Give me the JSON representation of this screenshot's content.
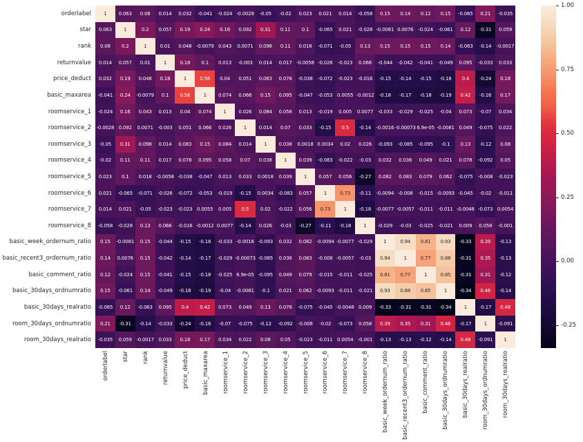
{
  "chart_data": {
    "type": "heatmap",
    "title": "",
    "xlabel": "",
    "ylabel": "",
    "grid": false,
    "colormap": "rocket",
    "vmin": -0.34,
    "vmax": 1.0,
    "legend_position": "right-colorbar",
    "colorbar_ticks": [
      {
        "label": "1.00",
        "value": 1.0
      },
      {
        "label": "0.75",
        "value": 0.75
      },
      {
        "label": "0.50",
        "value": 0.5
      },
      {
        "label": "0.25",
        "value": 0.25
      },
      {
        "label": "0.00",
        "value": 0.0
      },
      {
        "label": "-0.25",
        "value": -0.25
      }
    ],
    "categories": [
      "orderlabel",
      "star",
      "rank",
      "returnvalue",
      "price_deduct",
      "basic_maxarea",
      "roomservice_1",
      "roomservice_2",
      "roomservice_3",
      "roomservice_4",
      "roomservice_5",
      "roomservice_6",
      "roomservice_7",
      "roomservice_8",
      "basic_week_ordernum_ratio",
      "basic_recent3_ordernum_ratio",
      "basic_comment_ratio",
      "basic_30days_ordnumratio",
      "basic_30days_realratio",
      "room_30days_ordnumratio",
      "room_30days_realratio"
    ],
    "matrix": [
      [
        1,
        0.063,
        0.08,
        0.014,
        0.032,
        -0.041,
        -0.024,
        -0.0028,
        -0.05,
        -0.02,
        0.023,
        0.021,
        0.014,
        -0.058,
        0.15,
        0.14,
        0.12,
        0.15,
        -0.065,
        0.21,
        -0.035
      ],
      [
        0.063,
        1,
        0.2,
        0.057,
        0.19,
        0.24,
        0.16,
        0.092,
        0.31,
        0.11,
        0.1,
        -0.065,
        0.021,
        -0.028,
        -0.0081,
        0.0076,
        -0.024,
        -0.061,
        0.12,
        -0.31,
        0.059
      ],
      [
        0.08,
        0.2,
        1,
        0.01,
        0.048,
        -0.0079,
        0.043,
        0.0071,
        0.098,
        0.11,
        0.018,
        -0.071,
        -0.05,
        0.13,
        0.15,
        0.15,
        0.15,
        0.14,
        -0.063,
        -0.14,
        -0.0017
      ],
      [
        0.014,
        0.057,
        0.01,
        1,
        0.18,
        0.1,
        0.013,
        -0.003,
        0.014,
        0.017,
        -0.0058,
        -0.026,
        -0.023,
        0.066,
        -0.044,
        -0.042,
        -0.041,
        -0.049,
        0.095,
        -0.033,
        0.033
      ],
      [
        0.032,
        0.19,
        0.048,
        0.18,
        1,
        0.56,
        0.04,
        0.051,
        0.083,
        0.078,
        -0.038,
        -0.072,
        -0.023,
        -0.016,
        -0.15,
        -0.14,
        -0.15,
        -0.18,
        0.4,
        -0.24,
        0.18
      ],
      [
        -0.041,
        0.24,
        -0.0079,
        0.1,
        0.56,
        1,
        0.074,
        0.066,
        0.15,
        0.095,
        -0.047,
        -0.053,
        0.0055,
        -0.0012,
        -0.18,
        -0.17,
        -0.18,
        -0.19,
        0.42,
        -0.16,
        0.17
      ],
      [
        -0.024,
        0.16,
        0.043,
        0.013,
        0.04,
        0.074,
        1,
        0.026,
        0.084,
        0.058,
        0.013,
        -0.019,
        0.005,
        0.0077,
        -0.033,
        -0.029,
        -0.025,
        -0.04,
        0.073,
        -0.07,
        0.034
      ],
      [
        -0.0028,
        0.092,
        0.0071,
        -0.003,
        0.051,
        0.066,
        0.026,
        1,
        0.014,
        0.07,
        0.033,
        -0.15,
        0.5,
        -0.14,
        -0.0016,
        -0.00073,
        6.9e-05,
        -0.0081,
        0.049,
        -0.075,
        0.022
      ],
      [
        -0.05,
        0.31,
        0.098,
        0.014,
        0.083,
        0.15,
        0.084,
        0.014,
        1,
        0.038,
        0.0018,
        0.0034,
        0.02,
        0.026,
        -0.093,
        -0.085,
        -0.095,
        -0.1,
        0.13,
        -0.12,
        0.08
      ],
      [
        -0.02,
        0.11,
        0.11,
        0.017,
        0.078,
        0.095,
        0.058,
        0.07,
        0.038,
        1,
        0.039,
        -0.083,
        -0.022,
        -0.03,
        0.032,
        0.036,
        0.049,
        0.021,
        0.078,
        -0.092,
        0.05
      ],
      [
        0.023,
        0.1,
        0.018,
        -0.0058,
        -0.038,
        -0.047,
        0.013,
        0.033,
        0.0018,
        0.039,
        1,
        0.057,
        0.056,
        -0.27,
        0.082,
        0.083,
        0.079,
        0.062,
        -0.075,
        -0.008,
        -0.023
      ],
      [
        0.021,
        -0.065,
        -0.071,
        -0.026,
        -0.072,
        -0.053,
        -0.019,
        -0.15,
        0.0034,
        -0.083,
        0.057,
        1,
        0.73,
        -0.11,
        -0.0094,
        -0.008,
        -0.015,
        -0.0093,
        -0.045,
        -0.02,
        -0.011
      ],
      [
        0.014,
        0.021,
        -0.05,
        -0.023,
        -0.023,
        0.0055,
        0.005,
        0.5,
        0.02,
        -0.022,
        0.056,
        0.73,
        1,
        -0.18,
        -0.0077,
        -0.0057,
        -0.011,
        -0.011,
        -0.0048,
        -0.073,
        0.0054
      ],
      [
        -0.058,
        -0.028,
        0.13,
        0.066,
        -0.016,
        -0.0012,
        0.0077,
        -0.14,
        0.026,
        -0.03,
        -0.27,
        -0.11,
        -0.18,
        1,
        -0.029,
        -0.03,
        -0.025,
        -0.021,
        0.009,
        0.058,
        -0.001
      ],
      [
        0.15,
        -0.0081,
        0.15,
        -0.044,
        -0.15,
        -0.18,
        -0.033,
        -0.0016,
        -0.093,
        0.032,
        0.082,
        -0.0094,
        -0.0077,
        -0.029,
        1,
        0.94,
        0.81,
        0.93,
        -0.33,
        0.39,
        -0.13
      ],
      [
        0.14,
        0.0076,
        0.15,
        -0.042,
        -0.14,
        -0.17,
        -0.029,
        -0.00073,
        -0.085,
        0.036,
        0.083,
        -0.008,
        -0.0057,
        -0.03,
        0.94,
        1,
        0.77,
        0.88,
        -0.31,
        0.35,
        -0.13
      ],
      [
        0.12,
        -0.024,
        0.15,
        -0.041,
        -0.15,
        -0.18,
        -0.025,
        6.9e-05,
        -0.095,
        0.049,
        0.079,
        -0.015,
        -0.011,
        -0.025,
        0.81,
        0.77,
        1,
        0.85,
        -0.31,
        0.31,
        -0.12
      ],
      [
        0.15,
        -0.061,
        0.14,
        -0.049,
        -0.18,
        -0.19,
        -0.04,
        -0.0081,
        -0.1,
        0.021,
        0.062,
        -0.0093,
        -0.011,
        -0.021,
        0.93,
        0.88,
        0.85,
        1,
        -0.34,
        0.46,
        -0.14
      ],
      [
        -0.065,
        0.12,
        -0.063,
        0.095,
        0.4,
        0.42,
        0.073,
        0.049,
        0.13,
        0.078,
        -0.075,
        -0.045,
        -0.0048,
        0.009,
        -0.33,
        -0.31,
        -0.31,
        -0.34,
        1,
        -0.17,
        0.48
      ],
      [
        0.21,
        -0.31,
        -0.14,
        -0.033,
        -0.24,
        -0.16,
        -0.07,
        -0.075,
        -0.12,
        -0.092,
        -0.008,
        -0.02,
        -0.073,
        0.058,
        0.39,
        0.35,
        0.31,
        0.46,
        -0.17,
        1,
        -0.091
      ],
      [
        -0.035,
        0.059,
        -0.0017,
        0.033,
        0.18,
        0.17,
        0.034,
        0.022,
        0.08,
        0.05,
        -0.023,
        -0.011,
        0.0054,
        -0.001,
        -0.13,
        -0.13,
        -0.12,
        -0.14,
        0.48,
        -0.091,
        1
      ]
    ],
    "rocket_colormap_stops": [
      "#03051A",
      "#10082A",
      "#1A0B3C",
      "#260E4B",
      "#341054",
      "#45135A",
      "#56165C",
      "#68185D",
      "#7B195C",
      "#901859",
      "#A61754",
      "#BC1B4C",
      "#D12343",
      "#E2303D",
      "#F05B45",
      "#F4764F",
      "#F6946C",
      "#F6AF85",
      "#F5C8A4",
      "#F5DDC2",
      "#FAEBDD"
    ],
    "annotation_text_colors": {
      "on_dark": "#FFFFFF",
      "on_light": "#262626"
    }
  },
  "colors": {
    "background": "#FFFFFF",
    "tick_label": "#262626"
  }
}
